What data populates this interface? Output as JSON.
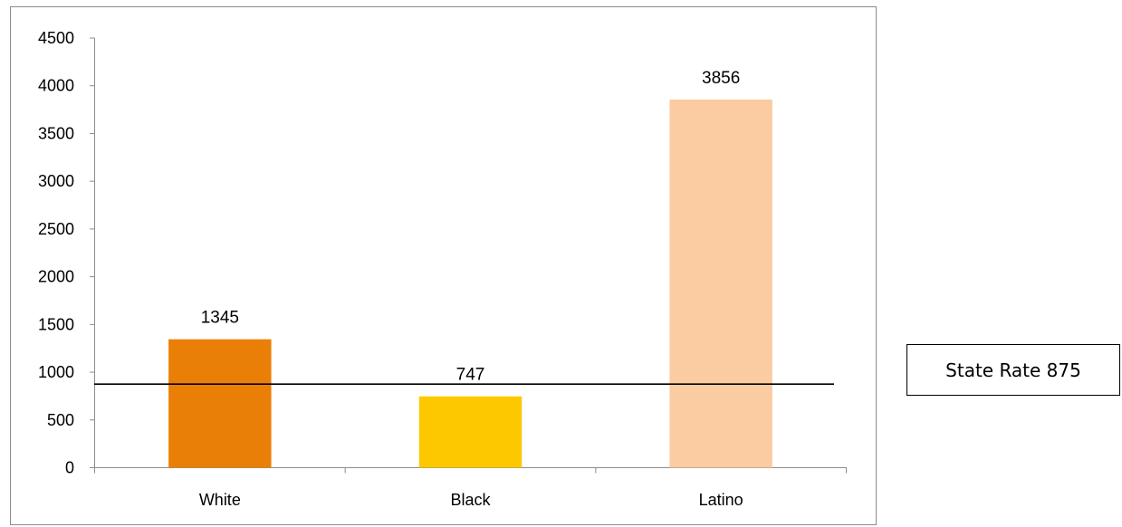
{
  "chart_data": {
    "type": "bar",
    "categories": [
      "White",
      "Black",
      "Latino"
    ],
    "values": [
      1345,
      747,
      3856
    ],
    "colors": [
      "#ea7f08",
      "#fec800",
      "#fbcba2"
    ],
    "ylim": [
      0,
      4500
    ],
    "yticks": [
      "0",
      "500",
      "1000",
      "1500",
      "2000",
      "2500",
      "3000",
      "3500",
      "4000",
      "4500"
    ],
    "grid": false,
    "reference_line": {
      "value": 875,
      "label": "State Rate 875",
      "color": "#000000"
    }
  }
}
